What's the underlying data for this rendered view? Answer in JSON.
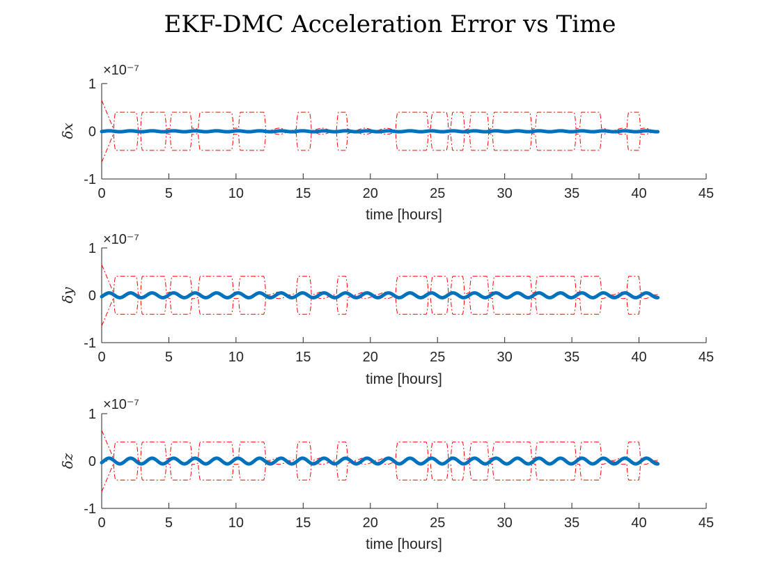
{
  "chart_data": {
    "type": "line",
    "title": "EKF-DMC Acceleration Error vs Time",
    "x_unit_label": "time [hours]",
    "xlim": [
      0,
      45
    ],
    "x_ticks": [
      "0",
      "5",
      "10",
      "15",
      "20",
      "25",
      "30",
      "35",
      "40",
      "45"
    ],
    "ylim": [
      -1,
      1
    ],
    "y_ticks": [
      "-1",
      "0",
      "1"
    ],
    "y_exponent_label": "×10⁻⁷",
    "grid": false,
    "line_colors": {
      "error": "#0072bd",
      "bounds": "#ff0000"
    },
    "x_end": 41.4,
    "subplots": [
      {
        "ylabel": "δx",
        "error": {
          "amplitude": 0.01,
          "period_hours": 1.6
        },
        "bounds": {
          "start_value": 0.65,
          "coast_value": 0.4,
          "tracking_value": 0.04,
          "coast_intervals": [
            [
              0.9,
              2.7
            ],
            [
              2.9,
              4.8
            ],
            [
              5.1,
              6.7
            ],
            [
              7.2,
              9.8
            ],
            [
              10.2,
              12.2
            ],
            [
              14.5,
              15.6
            ],
            [
              17.5,
              18.3
            ],
            [
              21.9,
              24.3
            ],
            [
              24.5,
              25.8
            ],
            [
              26.0,
              27.0
            ],
            [
              27.4,
              28.8
            ],
            [
              29.1,
              32.0
            ],
            [
              32.3,
              35.3
            ],
            [
              35.6,
              37.2
            ],
            [
              39.1,
              40.1
            ]
          ],
          "tracking_amplitude": 0.025
        }
      },
      {
        "ylabel": "δy",
        "error": {
          "amplitude": 0.05,
          "period_hours": 1.6
        },
        "bounds": {
          "start_value": 0.65,
          "coast_value": 0.4,
          "tracking_value": 0.04,
          "coast_intervals": [
            [
              0.9,
              2.7
            ],
            [
              2.9,
              4.8
            ],
            [
              5.1,
              6.7
            ],
            [
              7.2,
              9.8
            ],
            [
              10.2,
              12.2
            ],
            [
              14.5,
              15.6
            ],
            [
              17.5,
              18.3
            ],
            [
              21.9,
              24.3
            ],
            [
              24.5,
              25.8
            ],
            [
              26.0,
              27.0
            ],
            [
              27.4,
              28.8
            ],
            [
              29.1,
              32.0
            ],
            [
              32.3,
              35.3
            ],
            [
              35.6,
              37.2
            ],
            [
              39.1,
              40.1
            ]
          ],
          "tracking_amplitude": 0.03
        }
      },
      {
        "ylabel": "δz",
        "error": {
          "amplitude": 0.06,
          "period_hours": 1.6
        },
        "bounds": {
          "start_value": 0.65,
          "coast_value": 0.4,
          "tracking_value": 0.04,
          "coast_intervals": [
            [
              0.9,
              2.7
            ],
            [
              2.9,
              4.8
            ],
            [
              5.1,
              6.7
            ],
            [
              7.2,
              9.8
            ],
            [
              10.2,
              12.2
            ],
            [
              14.5,
              15.6
            ],
            [
              17.5,
              18.3
            ],
            [
              21.9,
              24.3
            ],
            [
              24.5,
              25.8
            ],
            [
              26.0,
              27.0
            ],
            [
              27.4,
              28.8
            ],
            [
              29.1,
              32.0
            ],
            [
              32.3,
              35.3
            ],
            [
              35.6,
              37.2
            ],
            [
              39.1,
              40.1
            ]
          ],
          "tracking_amplitude": 0.03
        }
      }
    ]
  }
}
